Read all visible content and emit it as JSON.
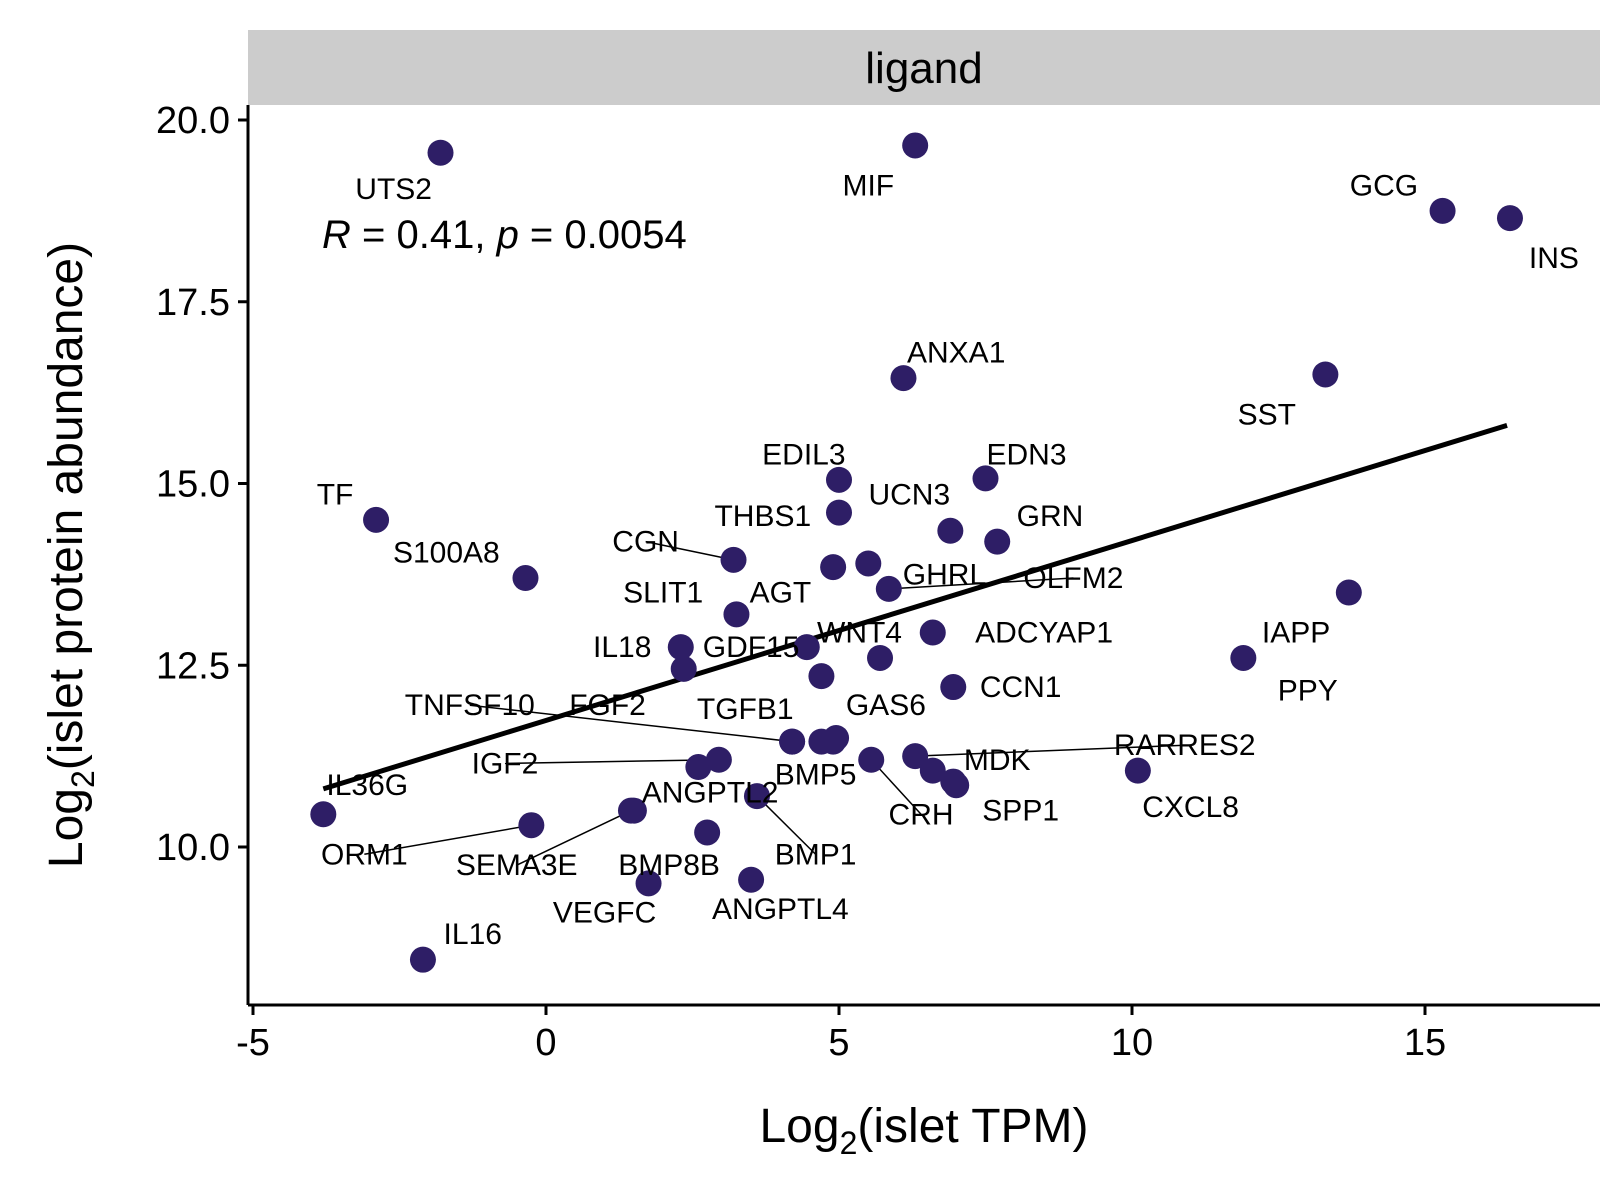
{
  "colors": {
    "point": "#2E1E66",
    "line": "#000000",
    "strip": "#CCCCCC",
    "axis": "#000000"
  },
  "chart_data": {
    "type": "scatter",
    "facet_label": "ligand",
    "xlabel": {
      "prefix": "Log",
      "sub": "2",
      "suffix": "(islet TPM)"
    },
    "ylabel": {
      "prefix": "Log",
      "sub": "2",
      "suffix": "(islet protein abundance)"
    },
    "xlim": [
      -5.1,
      18
    ],
    "ylim": [
      8.0,
      20.2
    ],
    "x_ticks": [
      -5,
      0,
      5,
      10,
      15
    ],
    "x_tick_labels": [
      "-5",
      "0",
      "5",
      "10",
      "15"
    ],
    "y_ticks": [
      10,
      12.5,
      15,
      17.5,
      20
    ],
    "y_tick_labels": [
      "10.0",
      "12.5",
      "15.0",
      "17.5",
      "20.0"
    ],
    "annotation": {
      "r_sym": "R",
      "r_text": " = 0.41, ",
      "p_sym": "p",
      "p_text": " = 0.0054"
    },
    "regression": {
      "x": [
        -3.8,
        16.4
      ],
      "y": [
        10.8,
        15.8
      ]
    },
    "points": [
      {
        "label": "UTS2",
        "x": -1.8,
        "y": 19.55,
        "lx": -2.6,
        "ly": 19.05
      },
      {
        "label": "MIF",
        "x": 6.3,
        "y": 19.65,
        "lx": 5.5,
        "ly": 19.1
      },
      {
        "label": "GCG",
        "x": 15.3,
        "y": 18.75,
        "lx": 14.3,
        "ly": 19.1
      },
      {
        "label": "INS",
        "x": 16.45,
        "y": 18.65,
        "lx": 17.2,
        "ly": 18.1
      },
      {
        "label": "ANXA1",
        "x": 6.1,
        "y": 16.45,
        "lx": 7.0,
        "ly": 16.8
      },
      {
        "label": "SST",
        "x": 13.3,
        "y": 16.5,
        "lx": 12.3,
        "ly": 15.95
      },
      {
        "label": "EDIL3",
        "x": 5.0,
        "y": 15.05,
        "lx": 4.4,
        "ly": 15.4
      },
      {
        "label": "EDN3",
        "x": 7.5,
        "y": 15.07,
        "lx": 8.2,
        "ly": 15.4
      },
      {
        "label": "TF",
        "x": -2.9,
        "y": 14.5,
        "lx": -3.6,
        "ly": 14.85
      },
      {
        "label": "UCN3",
        "x": 5.0,
        "y": 14.6,
        "lx": 6.2,
        "ly": 14.85
      },
      {
        "label": "THBS1",
        "x": 6.9,
        "y": 14.35,
        "lx": 3.7,
        "ly": 14.55
      },
      {
        "label": "GRN",
        "x": 7.7,
        "y": 14.2,
        "lx": 8.6,
        "ly": 14.55
      },
      {
        "label": "CGN",
        "x": 3.2,
        "y": 13.95,
        "lx": 1.7,
        "ly": 14.2,
        "leader": true
      },
      {
        "label": "S100A8",
        "x": -0.35,
        "y": 13.7,
        "lx": -1.7,
        "ly": 14.05
      },
      {
        "label": "AGT",
        "x": 4.9,
        "y": 13.85,
        "lx": 4.0,
        "ly": 13.5
      },
      {
        "label": "GHRL",
        "x": 5.5,
        "y": 13.9,
        "lx": 6.8,
        "ly": 13.75
      },
      {
        "label": "OLFM2",
        "x": 5.85,
        "y": 13.55,
        "lx": 9.0,
        "ly": 13.7,
        "leader": true
      },
      {
        "label": "SLIT1",
        "x": 3.25,
        "y": 13.2,
        "lx": 2.0,
        "ly": 13.5
      },
      {
        "label": "WNT4",
        "x": 5.7,
        "y": 12.6,
        "lx": 5.35,
        "ly": 12.95
      },
      {
        "label": "ADCYAP1",
        "x": 6.6,
        "y": 12.95,
        "lx": 8.5,
        "ly": 12.95
      },
      {
        "label": "IAPP",
        "x": 13.7,
        "y": 13.5,
        "lx": 12.8,
        "ly": 12.95
      },
      {
        "label": "PPY",
        "x": 11.9,
        "y": 12.6,
        "lx": 13.0,
        "ly": 12.15
      },
      {
        "label": "IL18",
        "x": 2.3,
        "y": 12.75,
        "lx": 1.3,
        "ly": 12.75
      },
      {
        "label": "GDF15",
        "x": 4.45,
        "y": 12.75,
        "lx": 3.5,
        "ly": 12.75
      },
      {
        "label": "",
        "x": 2.35,
        "y": 12.45
      },
      {
        "label": "",
        "x": 4.7,
        "y": 12.35
      },
      {
        "label": "CCN1",
        "x": 6.95,
        "y": 12.2,
        "lx": 8.1,
        "ly": 12.2
      },
      {
        "label": "TNFSF10",
        "x": 4.2,
        "y": 11.45,
        "lx": -1.3,
        "ly": 11.95,
        "leader": true
      },
      {
        "label": "FGF2",
        "x": 4.2,
        "y": 11.45,
        "lx": 1.05,
        "ly": 11.95
      },
      {
        "label": "TGFB1",
        "x": 4.7,
        "y": 11.45,
        "lx": 3.4,
        "ly": 11.9
      },
      {
        "label": "GAS6",
        "x": 4.95,
        "y": 11.5,
        "lx": 5.8,
        "ly": 11.95
      },
      {
        "label": "RARRES2",
        "x": 6.3,
        "y": 11.25,
        "lx": 10.9,
        "ly": 11.4,
        "leader": true
      },
      {
        "label": "MDK",
        "x": 6.6,
        "y": 11.05,
        "lx": 7.7,
        "ly": 11.2
      },
      {
        "label": "IGF2",
        "x": 2.95,
        "y": 11.2,
        "lx": -0.7,
        "ly": 11.15,
        "leader": true
      },
      {
        "label": "",
        "x": 2.6,
        "y": 11.1
      },
      {
        "label": "BMP5",
        "x": 4.9,
        "y": 11.45,
        "lx": 4.6,
        "ly": 11.0
      },
      {
        "label": "CRH",
        "x": 5.55,
        "y": 11.2,
        "lx": 6.4,
        "ly": 10.45,
        "leader": true
      },
      {
        "label": "",
        "x": 6.95,
        "y": 10.9
      },
      {
        "label": "CXCL8",
        "x": 10.1,
        "y": 11.05,
        "lx": 11.0,
        "ly": 10.55
      },
      {
        "label": "SPP1",
        "x": 7.0,
        "y": 10.85,
        "lx": 8.1,
        "ly": 10.5
      },
      {
        "label": "IL36G",
        "x": -3.8,
        "y": 10.45,
        "lx": -3.05,
        "ly": 10.85
      },
      {
        "label": "ANGPTL2",
        "x": 1.5,
        "y": 10.5,
        "lx": 2.8,
        "ly": 10.75
      },
      {
        "label": "BMP1",
        "x": 3.6,
        "y": 10.7,
        "lx": 4.6,
        "ly": 9.9,
        "leader": true
      },
      {
        "label": "ORM1",
        "x": -0.25,
        "y": 10.3,
        "lx": -3.1,
        "ly": 9.9,
        "leader": true
      },
      {
        "label": "SEMA3E",
        "x": 1.45,
        "y": 10.5,
        "lx": -0.5,
        "ly": 9.75,
        "leader": true
      },
      {
        "label": "BMP8B",
        "x": 2.75,
        "y": 10.2,
        "lx": 2.1,
        "ly": 9.75
      },
      {
        "label": "VEGFC",
        "x": 1.75,
        "y": 9.5,
        "lx": 1.0,
        "ly": 9.1
      },
      {
        "label": "ANGPTL4",
        "x": 3.5,
        "y": 9.55,
        "lx": 4.0,
        "ly": 9.15
      },
      {
        "label": "IL16",
        "x": -2.1,
        "y": 8.45,
        "lx": -1.25,
        "ly": 8.8
      }
    ]
  }
}
